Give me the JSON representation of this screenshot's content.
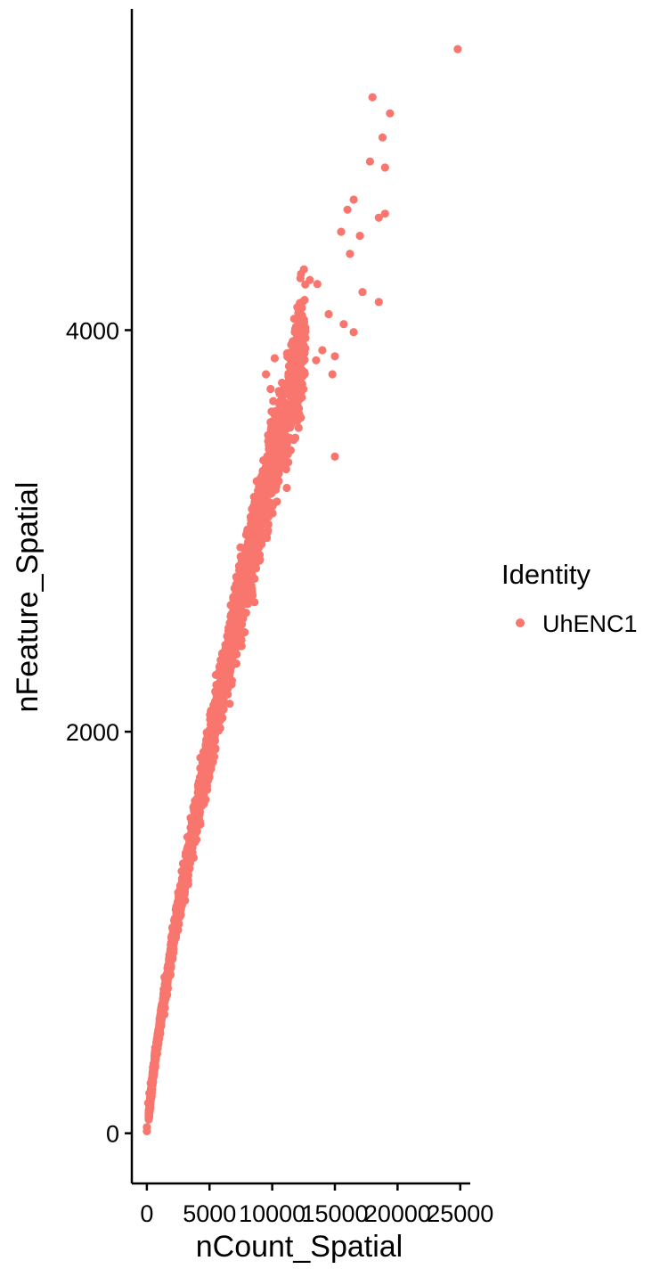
{
  "chart_data": {
    "type": "scatter",
    "xlabel": "nCount_Spatial",
    "ylabel": "nFeature_Spatial",
    "xlim": [
      -1200,
      25800
    ],
    "ylim": [
      -250,
      5600
    ],
    "xticks": [
      0,
      5000,
      10000,
      15000,
      20000,
      25000
    ],
    "yticks": [
      0,
      2000,
      4000
    ],
    "grid": false,
    "legend": {
      "title": "Identity",
      "placement": "right",
      "entries": [
        {
          "label": "UhENC1",
          "color": "#F8766D"
        }
      ]
    },
    "series": [
      {
        "name": "UhENC1",
        "color": "#F8766D",
        "trend": {
          "x": [
            0,
            300,
            600,
            1000,
            1500,
            2000,
            2500,
            3000,
            3500,
            4000,
            4500,
            5000,
            5500,
            6000,
            6500,
            7000,
            7500,
            8000,
            8500,
            9000,
            9500,
            10000,
            10500,
            11000,
            11500,
            12000,
            12500,
            13000
          ],
          "y": [
            0,
            180,
            350,
            520,
            720,
            920,
            1100,
            1270,
            1440,
            1600,
            1770,
            1930,
            2080,
            2220,
            2370,
            2520,
            2660,
            2800,
            2940,
            3070,
            3200,
            3330,
            3460,
            3580,
            3700,
            3820,
            3940,
            4060
          ]
        },
        "outliers": {
          "x": [
            24800,
            18000,
            19400,
            18800,
            17800,
            19000,
            16500,
            16000,
            18500,
            19000,
            15500,
            17000,
            16200,
            12300,
            13000,
            13600,
            17200,
            18500,
            14500,
            15700,
            11800,
            16500,
            12000,
            14000,
            15000,
            10200,
            9500,
            11500,
            12500,
            13500,
            14800,
            15000
          ],
          "y": [
            5400,
            5160,
            5080,
            4960,
            4840,
            4810,
            4650,
            4600,
            4560,
            4580,
            4490,
            4470,
            4380,
            4280,
            4250,
            4230,
            4190,
            4140,
            4080,
            4030,
            3990,
            3990,
            3940,
            3900,
            3870,
            3860,
            3780,
            3800,
            3790,
            3850,
            3780,
            3370
          ]
        },
        "low_points": {
          "x": [
            0,
            0,
            100,
            200,
            300
          ],
          "y": [
            10,
            30,
            150,
            200,
            250
          ]
        }
      }
    ]
  }
}
